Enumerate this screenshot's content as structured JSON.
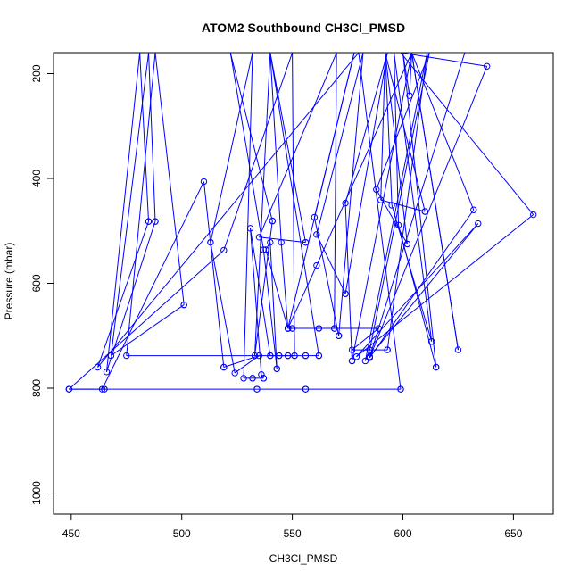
{
  "chart_data": {
    "type": "line",
    "title": "ATOM2 Southbound CH3Cl_PMSD",
    "xlabel": "CH3Cl_PMSD",
    "ylabel": "Pressure (mbar)",
    "xlim": [
      442,
      668
    ],
    "ylim": [
      1040,
      160
    ],
    "y_reversed": true,
    "grid": false,
    "legend": "none",
    "x_ticks": [
      450,
      500,
      550,
      600,
      650
    ],
    "y_ticks": [
      200,
      400,
      600,
      800,
      1000
    ],
    "line_color": "#0000ff",
    "marker": "open-circle",
    "series": [
      {
        "points": [
          [
            449,
            802
          ],
          [
            465,
            802
          ],
          [
            465,
            802
          ],
          [
            534,
            802
          ],
          [
            534,
            802
          ],
          [
            556,
            802
          ],
          [
            556,
            802
          ],
          [
            599,
            802
          ],
          [
            599,
            802
          ],
          [
            580,
            160
          ],
          [
            462,
            760
          ],
          [
            485,
            482
          ],
          [
            485,
            482
          ],
          [
            481,
            160
          ],
          [
            466,
            769
          ],
          [
            488,
            482
          ],
          [
            488,
            482
          ],
          [
            485,
            160
          ],
          [
            468,
            738
          ],
          [
            501,
            641
          ],
          [
            501,
            641
          ],
          [
            488,
            160
          ],
          [
            475,
            738
          ],
          [
            544,
            738
          ],
          [
            544,
            738
          ],
          [
            551,
            738
          ],
          [
            551,
            738
          ],
          [
            550,
            160
          ],
          [
            519,
            537
          ],
          [
            449,
            802
          ],
          [
            449,
            802
          ],
          [
            464,
            802
          ],
          [
            510,
            406
          ],
          [
            519,
            760
          ],
          [
            519,
            760
          ],
          [
            535,
            738
          ],
          [
            524,
            771
          ],
          [
            513,
            522
          ],
          [
            513,
            522
          ],
          [
            532,
            160
          ],
          [
            528,
            781
          ],
          [
            532,
            781
          ],
          [
            532,
            781
          ],
          [
            537,
            781
          ],
          [
            537,
            781
          ],
          [
            536,
            774
          ],
          [
            531,
            495
          ],
          [
            540,
            738
          ],
          [
            540,
            738
          ],
          [
            548,
            738
          ],
          [
            548,
            738
          ],
          [
            556,
            738
          ],
          [
            556,
            738
          ],
          [
            562,
            738
          ],
          [
            562,
            738
          ],
          [
            540,
            160
          ],
          [
            533,
            738
          ],
          [
            541,
            481
          ],
          [
            541,
            481
          ],
          [
            522,
            160
          ],
          [
            537,
            536
          ],
          [
            543,
            763
          ],
          [
            543,
            763
          ],
          [
            540,
            522
          ],
          [
            538,
            536
          ],
          [
            548,
            686
          ],
          [
            548,
            686
          ],
          [
            550,
            686
          ],
          [
            550,
            686
          ],
          [
            562,
            686
          ],
          [
            562,
            686
          ],
          [
            569,
            686
          ],
          [
            569,
            686
          ],
          [
            570,
            160
          ],
          [
            535,
            512
          ],
          [
            556,
            522
          ],
          [
            556,
            522
          ],
          [
            540,
            160
          ],
          [
            545,
            522
          ],
          [
            548,
            686
          ],
          [
            548,
            686
          ],
          [
            578,
            160
          ],
          [
            560,
            474
          ],
          [
            571,
            700
          ],
          [
            571,
            700
          ],
          [
            582,
            160
          ],
          [
            561,
            507
          ],
          [
            574,
            620
          ],
          [
            574,
            620
          ],
          [
            593,
            160
          ],
          [
            574,
            447
          ],
          [
            577,
            748
          ],
          [
            577,
            748
          ],
          [
            604,
            160
          ],
          [
            561,
            566
          ],
          [
            548,
            686
          ],
          [
            548,
            686
          ],
          [
            589,
            686
          ],
          [
            577,
            727
          ],
          [
            593,
            727
          ],
          [
            593,
            727
          ],
          [
            611,
            160
          ],
          [
            583,
            748
          ],
          [
            585,
            727
          ],
          [
            585,
            727
          ],
          [
            612,
            160
          ],
          [
            588,
            421
          ],
          [
            602,
            525
          ],
          [
            602,
            525
          ],
          [
            592,
            160
          ],
          [
            590,
            441
          ],
          [
            610,
            463
          ],
          [
            610,
            463
          ],
          [
            592,
            160
          ],
          [
            595,
            451
          ],
          [
            613,
            711
          ],
          [
            613,
            711
          ],
          [
            596,
            160
          ],
          [
            598,
            489
          ],
          [
            615,
            760
          ],
          [
            615,
            760
          ],
          [
            600,
            160
          ],
          [
            603,
            242
          ],
          [
            604,
            160
          ],
          [
            625,
            727
          ],
          [
            604,
            160
          ],
          [
            632,
            460
          ],
          [
            585,
            742
          ],
          [
            638,
            186
          ],
          [
            599,
            160
          ],
          [
            659,
            469
          ],
          [
            579,
            740
          ],
          [
            634,
            486
          ],
          [
            585,
            740
          ],
          [
            628,
            160
          ],
          [
            604,
            160
          ]
        ]
      }
    ]
  }
}
